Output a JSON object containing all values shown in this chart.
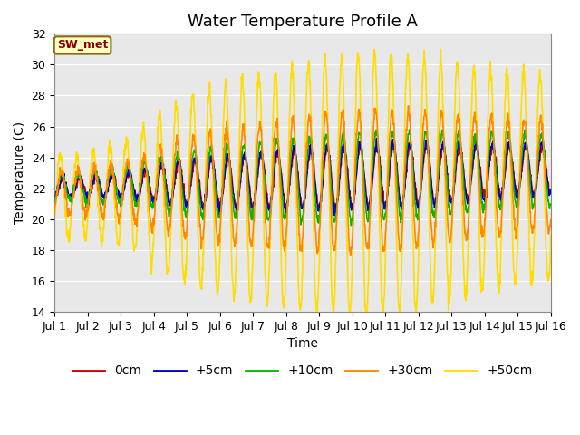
{
  "title": "Water Temperature Profile A",
  "xlabel": "Time",
  "ylabel": "Temperature (C)",
  "ylim": [
    14,
    32
  ],
  "yticks": [
    14,
    16,
    18,
    20,
    22,
    24,
    26,
    28,
    30,
    32
  ],
  "xlim_days": 15,
  "n_points": 1500,
  "annotation_text": "SW_met",
  "annotation_color": "#8B0000",
  "annotation_bg": "#FFFFC0",
  "annotation_border": "#8B6914",
  "series": {
    "0cm": {
      "color": "#CC0000",
      "lw": 1.2
    },
    "+5cm": {
      "color": "#0000CC",
      "lw": 1.2
    },
    "+10cm": {
      "color": "#00BB00",
      "lw": 1.2
    },
    "+30cm": {
      "color": "#FF8800",
      "lw": 1.2
    },
    "+50cm": {
      "color": "#FFDD00",
      "lw": 1.2
    }
  },
  "bg_color": "#FFFFFF",
  "plot_bg_color": "#E8E8E8",
  "grid_color": "#FFFFFF",
  "title_fontsize": 13,
  "label_fontsize": 10,
  "tick_fontsize": 9,
  "legend_fontsize": 10
}
